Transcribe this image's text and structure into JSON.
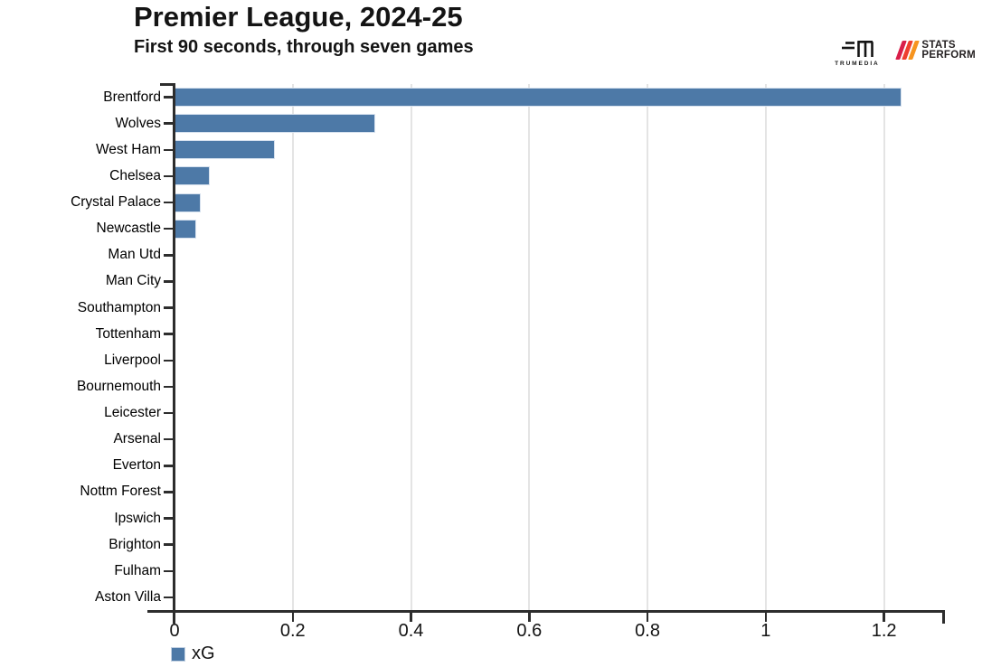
{
  "header": {
    "title": "Premier League, 2024-25",
    "subtitle": "First 90 seconds, through seven games"
  },
  "branding": {
    "trumedia_label": "TRUMEDIA",
    "statsperform_line1": "STATS",
    "statsperform_line2": "PERFORM",
    "slash_colors": [
      "#d91e49",
      "#ee3e2e",
      "#f7941e"
    ]
  },
  "chart_data": {
    "type": "bar",
    "orientation": "horizontal",
    "title": "Premier League, 2024-25",
    "subtitle": "First 90 seconds, through seven games",
    "categories": [
      "Brentford",
      "Wolves",
      "West Ham",
      "Chelsea",
      "Crystal Palace",
      "Newcastle",
      "Man Utd",
      "Man City",
      "Southampton",
      "Tottenham",
      "Liverpool",
      "Bournemouth",
      "Leicester",
      "Arsenal",
      "Everton",
      "Nottm Forest",
      "Ipswich",
      "Brighton",
      "Fulham",
      "Aston Villa"
    ],
    "series": [
      {
        "name": "xG",
        "values": [
          1.23,
          0.34,
          0.17,
          0.06,
          0.045,
          0.037,
          0,
          0,
          0,
          0,
          0,
          0,
          0,
          0,
          0,
          0,
          0,
          0,
          0,
          0
        ]
      }
    ],
    "xlabel": "",
    "ylabel": "",
    "xlim": [
      0,
      1.3
    ],
    "x_tick_values": [
      0,
      0.2,
      0.4,
      0.6,
      0.8,
      1,
      1.2
    ],
    "x_tick_labels": [
      "0",
      "0.2",
      "0.4",
      "0.6",
      "0.8",
      "1",
      "1.2"
    ],
    "grid": true,
    "legend": {
      "label": "xG",
      "position": "bottom-left"
    },
    "style": {
      "bar_color": "#4d79a7",
      "bar_border_color": "#d6e1ee",
      "grid_color": "#e4e4e4",
      "axis_color": "#2d2d2d",
      "text_color": "#141414"
    }
  }
}
